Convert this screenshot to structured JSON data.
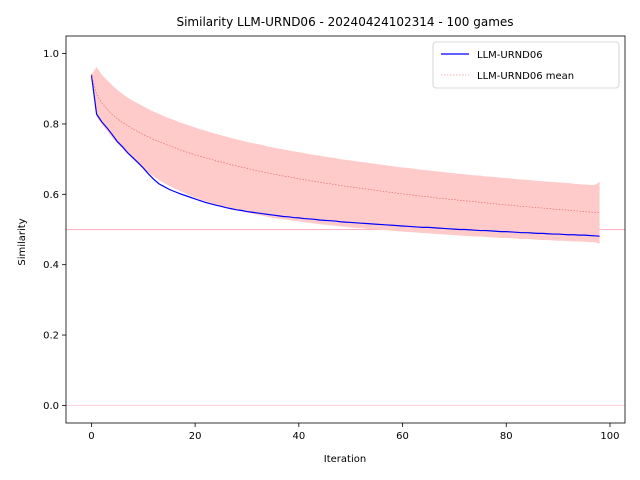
{
  "chart_data": {
    "type": "line",
    "title": "Similarity LLM-URND06 - 20240424102314 - 100 games",
    "xlabel": "Iteration",
    "ylabel": "Similarity",
    "xlim": [
      -4.9,
      102.9
    ],
    "ylim": [
      -0.05,
      1.05
    ],
    "xticks": [
      0,
      20,
      40,
      60,
      80,
      100
    ],
    "yticks": [
      0.0,
      0.2,
      0.4,
      0.6,
      0.8,
      1.0
    ],
    "legend_position": "top-right",
    "reference_lines": [
      {
        "y": 0.5,
        "color": "#ffb0c0"
      },
      {
        "y": 0.0,
        "color": "#ffd0d8"
      }
    ],
    "x": [
      0,
      1,
      2,
      3,
      4,
      5,
      6,
      7,
      8,
      9,
      10,
      11,
      12,
      13,
      14,
      15,
      16,
      17,
      18,
      19,
      20,
      21,
      22,
      23,
      24,
      25,
      26,
      27,
      28,
      29,
      30,
      31,
      32,
      33,
      34,
      35,
      36,
      37,
      38,
      39,
      40,
      41,
      42,
      43,
      44,
      45,
      46,
      47,
      48,
      49,
      50,
      51,
      52,
      53,
      54,
      55,
      56,
      57,
      58,
      59,
      60,
      61,
      62,
      63,
      64,
      65,
      66,
      67,
      68,
      69,
      70,
      71,
      72,
      73,
      74,
      75,
      76,
      77,
      78,
      79,
      80,
      81,
      82,
      83,
      84,
      85,
      86,
      87,
      88,
      89,
      90,
      91,
      92,
      93,
      94,
      95,
      96,
      97,
      98
    ],
    "series": [
      {
        "name": "LLM-URND06",
        "color": "#0000ff",
        "values": [
          0.94,
          0.828,
          0.806,
          0.789,
          0.77,
          0.75,
          0.735,
          0.718,
          0.704,
          0.69,
          0.675,
          0.658,
          0.643,
          0.63,
          0.622,
          0.614,
          0.608,
          0.602,
          0.597,
          0.592,
          0.587,
          0.582,
          0.577,
          0.573,
          0.569,
          0.566,
          0.562,
          0.559,
          0.556,
          0.554,
          0.551,
          0.549,
          0.547,
          0.545,
          0.543,
          0.541,
          0.539,
          0.537,
          0.536,
          0.534,
          0.533,
          0.531,
          0.53,
          0.529,
          0.527,
          0.526,
          0.525,
          0.524,
          0.522,
          0.521,
          0.52,
          0.519,
          0.518,
          0.517,
          0.516,
          0.515,
          0.514,
          0.513,
          0.512,
          0.511,
          0.51,
          0.509,
          0.508,
          0.507,
          0.506,
          0.506,
          0.505,
          0.504,
          0.503,
          0.502,
          0.501,
          0.5,
          0.5,
          0.499,
          0.498,
          0.497,
          0.497,
          0.496,
          0.495,
          0.494,
          0.494,
          0.493,
          0.492,
          0.491,
          0.491,
          0.49,
          0.489,
          0.489,
          0.488,
          0.487,
          0.487,
          0.486,
          0.485,
          0.485,
          0.484,
          0.484,
          0.483,
          0.482,
          0.481
        ]
      },
      {
        "name": "LLM-URND06 mean",
        "color": "#e06060",
        "values": [
          0.94,
          0.884,
          0.86,
          0.843,
          0.827,
          0.815,
          0.804,
          0.795,
          0.786,
          0.778,
          0.77,
          0.763,
          0.756,
          0.75,
          0.744,
          0.738,
          0.733,
          0.727,
          0.722,
          0.717,
          0.712,
          0.708,
          0.704,
          0.7,
          0.695,
          0.692,
          0.688,
          0.684,
          0.681,
          0.677,
          0.674,
          0.67,
          0.667,
          0.664,
          0.661,
          0.658,
          0.655,
          0.652,
          0.65,
          0.647,
          0.644,
          0.642,
          0.639,
          0.637,
          0.634,
          0.632,
          0.63,
          0.628,
          0.625,
          0.623,
          0.621,
          0.619,
          0.617,
          0.615,
          0.613,
          0.611,
          0.609,
          0.607,
          0.605,
          0.603,
          0.601,
          0.6,
          0.598,
          0.596,
          0.594,
          0.593,
          0.591,
          0.589,
          0.588,
          0.586,
          0.585,
          0.583,
          0.582,
          0.58,
          0.579,
          0.577,
          0.576,
          0.574,
          0.573,
          0.571,
          0.57,
          0.569,
          0.567,
          0.566,
          0.565,
          0.563,
          0.562,
          0.561,
          0.56,
          0.558,
          0.557,
          0.556,
          0.555,
          0.554,
          0.552,
          0.551,
          0.55,
          0.549,
          0.548
        ]
      }
    ],
    "band": {
      "color": "#ffcaca",
      "upper": [
        0.94,
        0.962,
        0.94,
        0.925,
        0.91,
        0.897,
        0.885,
        0.875,
        0.866,
        0.858,
        0.85,
        0.842,
        0.835,
        0.829,
        0.822,
        0.816,
        0.811,
        0.805,
        0.8,
        0.795,
        0.79,
        0.785,
        0.781,
        0.776,
        0.772,
        0.768,
        0.764,
        0.76,
        0.756,
        0.753,
        0.749,
        0.746,
        0.743,
        0.74,
        0.736,
        0.733,
        0.73,
        0.728,
        0.725,
        0.722,
        0.72,
        0.717,
        0.714,
        0.712,
        0.71,
        0.707,
        0.705,
        0.703,
        0.7,
        0.698,
        0.696,
        0.694,
        0.692,
        0.69,
        0.688,
        0.686,
        0.684,
        0.682,
        0.68,
        0.678,
        0.676,
        0.675,
        0.673,
        0.671,
        0.669,
        0.668,
        0.666,
        0.665,
        0.663,
        0.661,
        0.66,
        0.658,
        0.657,
        0.655,
        0.654,
        0.653,
        0.651,
        0.65,
        0.649,
        0.647,
        0.646,
        0.645,
        0.643,
        0.642,
        0.641,
        0.64,
        0.638,
        0.637,
        0.636,
        0.635,
        0.634,
        0.633,
        0.632,
        0.63,
        0.629,
        0.628,
        0.627,
        0.626,
        0.635
      ],
      "lower": [
        0.94,
        0.82,
        0.8,
        0.78,
        0.762,
        0.745,
        0.73,
        0.715,
        0.7,
        0.686,
        0.674,
        0.662,
        0.651,
        0.641,
        0.632,
        0.624,
        0.617,
        0.61,
        0.603,
        0.597,
        0.591,
        0.585,
        0.58,
        0.575,
        0.57,
        0.566,
        0.562,
        0.558,
        0.554,
        0.551,
        0.548,
        0.545,
        0.542,
        0.539,
        0.536,
        0.533,
        0.531,
        0.529,
        0.527,
        0.525,
        0.523,
        0.521,
        0.519,
        0.517,
        0.515,
        0.514,
        0.512,
        0.511,
        0.509,
        0.508,
        0.506,
        0.505,
        0.504,
        0.502,
        0.501,
        0.5,
        0.499,
        0.498,
        0.496,
        0.495,
        0.494,
        0.493,
        0.492,
        0.491,
        0.49,
        0.489,
        0.488,
        0.487,
        0.486,
        0.485,
        0.484,
        0.483,
        0.482,
        0.481,
        0.48,
        0.48,
        0.479,
        0.478,
        0.477,
        0.476,
        0.476,
        0.475,
        0.474,
        0.473,
        0.473,
        0.472,
        0.471,
        0.47,
        0.47,
        0.469,
        0.468,
        0.468,
        0.467,
        0.466,
        0.466,
        0.465,
        0.464,
        0.464,
        0.46
      ]
    }
  }
}
